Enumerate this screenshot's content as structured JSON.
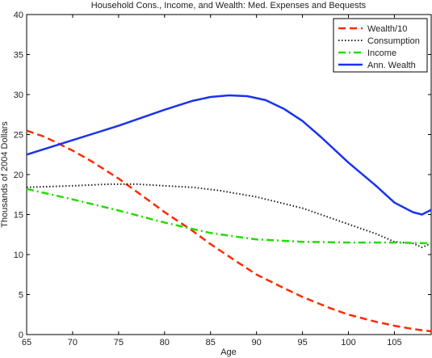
{
  "chart_data": {
    "type": "line",
    "title": "Household Cons., Income, and Wealth: Med. Expenses and Bequests",
    "xlabel": "Age",
    "ylabel": "Thousands of 2004 Dollars",
    "xlim": [
      65,
      109
    ],
    "ylim": [
      0,
      40
    ],
    "xticks": [
      65,
      70,
      75,
      80,
      85,
      90,
      95,
      100,
      105
    ],
    "yticks": [
      0,
      5,
      10,
      15,
      20,
      25,
      30,
      35,
      40
    ],
    "grid": false,
    "legend_position": "top-right",
    "series": [
      {
        "name": "Wealth/10",
        "color": "#ff2a00",
        "style": "dashed",
        "x": [
          65,
          67,
          70,
          72,
          75,
          78,
          80,
          83,
          85,
          88,
          90,
          93,
          95,
          98,
          100,
          103,
          105,
          107,
          109
        ],
        "y": [
          25.5,
          24.7,
          23.0,
          21.7,
          19.5,
          17.0,
          15.3,
          13.0,
          11.3,
          9.0,
          7.5,
          5.8,
          4.7,
          3.3,
          2.5,
          1.6,
          1.1,
          0.7,
          0.4
        ]
      },
      {
        "name": "Consumption",
        "color": "#222222",
        "style": "dotted",
        "x": [
          65,
          70,
          74,
          77,
          80,
          83,
          86,
          90,
          95,
          100,
          103,
          105,
          107,
          108,
          109
        ],
        "y": [
          18.4,
          18.6,
          18.8,
          18.8,
          18.6,
          18.4,
          18.0,
          17.2,
          15.8,
          13.8,
          12.6,
          11.6,
          11.4,
          10.9,
          11.4
        ]
      },
      {
        "name": "Income",
        "color": "#22dd00",
        "style": "dashdot",
        "x": [
          65,
          70,
          75,
          80,
          85,
          88,
          90,
          95,
          100,
          105,
          109
        ],
        "y": [
          18.2,
          16.9,
          15.5,
          14.0,
          12.7,
          12.2,
          11.9,
          11.6,
          11.5,
          11.5,
          11.4
        ]
      },
      {
        "name": "Ann. Wealth",
        "color": "#1a33ee",
        "style": "solid",
        "x": [
          65,
          70,
          75,
          80,
          83,
          85,
          87,
          89,
          91,
          93,
          95,
          97,
          100,
          103,
          105,
          107,
          108,
          109
        ],
        "y": [
          22.5,
          24.3,
          26.1,
          28.1,
          29.2,
          29.7,
          29.9,
          29.8,
          29.3,
          28.2,
          26.7,
          24.7,
          21.5,
          18.6,
          16.5,
          15.3,
          15.0,
          15.6
        ]
      }
    ]
  }
}
